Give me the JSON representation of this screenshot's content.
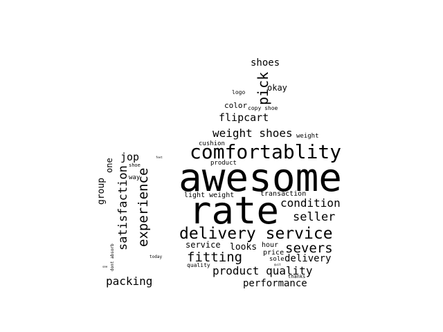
{
  "text_color": "#000000",
  "background_color": "#ffffff",
  "words": [
    {
      "text": "awesome"
    },
    {
      "text": "rate"
    },
    {
      "text": "comfortablity"
    },
    {
      "text": "delivery service"
    },
    {
      "text": "weight shoes"
    },
    {
      "text": "flipcart"
    },
    {
      "text": "shoes"
    },
    {
      "text": "pick"
    },
    {
      "text": "okay"
    },
    {
      "text": "logo"
    },
    {
      "text": "color"
    },
    {
      "text": "copy shoe"
    },
    {
      "text": "weight"
    },
    {
      "text": "cushion"
    },
    {
      "text": "product"
    },
    {
      "text": "light weight"
    },
    {
      "text": "transaction"
    },
    {
      "text": "condition"
    },
    {
      "text": "seller"
    },
    {
      "text": "severs"
    },
    {
      "text": "service"
    },
    {
      "text": "looks"
    },
    {
      "text": "hour"
    },
    {
      "text": "price"
    },
    {
      "text": "sole"
    },
    {
      "text": "delivery"
    },
    {
      "text": "fitting"
    },
    {
      "text": "quality"
    },
    {
      "text": "product quality"
    },
    {
      "text": "thanks"
    },
    {
      "text": "performance"
    },
    {
      "text": "packing"
    },
    {
      "text": "jop"
    },
    {
      "text": "shoe"
    },
    {
      "text": "way"
    },
    {
      "text": "one"
    },
    {
      "text": "group"
    },
    {
      "text": "satisfaction"
    },
    {
      "text": "experience"
    },
    {
      "text": "today"
    },
    {
      "text": "dont absorb"
    },
    {
      "text": "feet"
    },
    {
      "text": "see"
    },
    {
      "text": "quit"
    }
  ]
}
